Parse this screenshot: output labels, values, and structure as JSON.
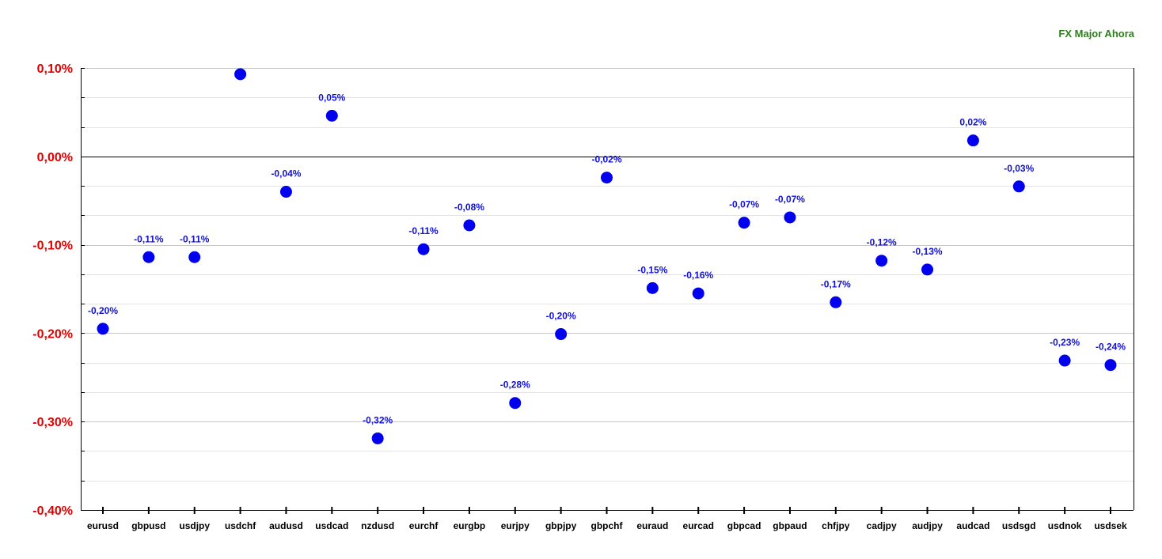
{
  "chart_data": {
    "type": "scatter",
    "title": "FX Major Ahora",
    "xlabel": "",
    "ylabel": "",
    "ylim": [
      -0.4,
      0.1
    ],
    "yticks": [
      0.1,
      0.0,
      -0.1,
      -0.2,
      -0.3,
      -0.4
    ],
    "ytick_labels": [
      "0,10%",
      "0,00%",
      "-0,10%",
      "-0,20%",
      "-0,30%",
      "-0,40%"
    ],
    "grid": true,
    "legend": "none",
    "point_color": "#0000ee",
    "label_color": "#1010d8",
    "tick_label_color": "#e00000",
    "categories": [
      "eurusd",
      "gbpusd",
      "usdjpy",
      "usdchf",
      "audusd",
      "usdcad",
      "nzdusd",
      "eurchf",
      "eurgbp",
      "eurjpy",
      "gbpjpy",
      "gbpchf",
      "euraud",
      "eurcad",
      "gbpcad",
      "gbpaud",
      "chfjpy",
      "cadjpy",
      "audjpy",
      "audcad",
      "usdsgd",
      "usdnok",
      "usdsek"
    ],
    "values": [
      -0.195,
      -0.114,
      -0.114,
      0.093,
      -0.04,
      0.046,
      -0.319,
      -0.105,
      -0.078,
      -0.279,
      -0.201,
      -0.024,
      -0.149,
      -0.155,
      -0.075,
      -0.069,
      -0.165,
      -0.118,
      -0.128,
      0.018,
      -0.034,
      -0.231,
      -0.236
    ],
    "data_labels": [
      "-0,20%",
      "-0,11%",
      "-0,11%",
      "",
      "-0,04%",
      "0,05%",
      "-0,32%",
      "-0,11%",
      "-0,08%",
      "-0,28%",
      "-0,20%",
      "-0,02%",
      "-0,15%",
      "-0,16%",
      "-0,07%",
      "-0,07%",
      "-0,17%",
      "-0,12%",
      "-0,13%",
      "0,02%",
      "-0,03%",
      "-0,23%",
      "-0,24%"
    ]
  }
}
